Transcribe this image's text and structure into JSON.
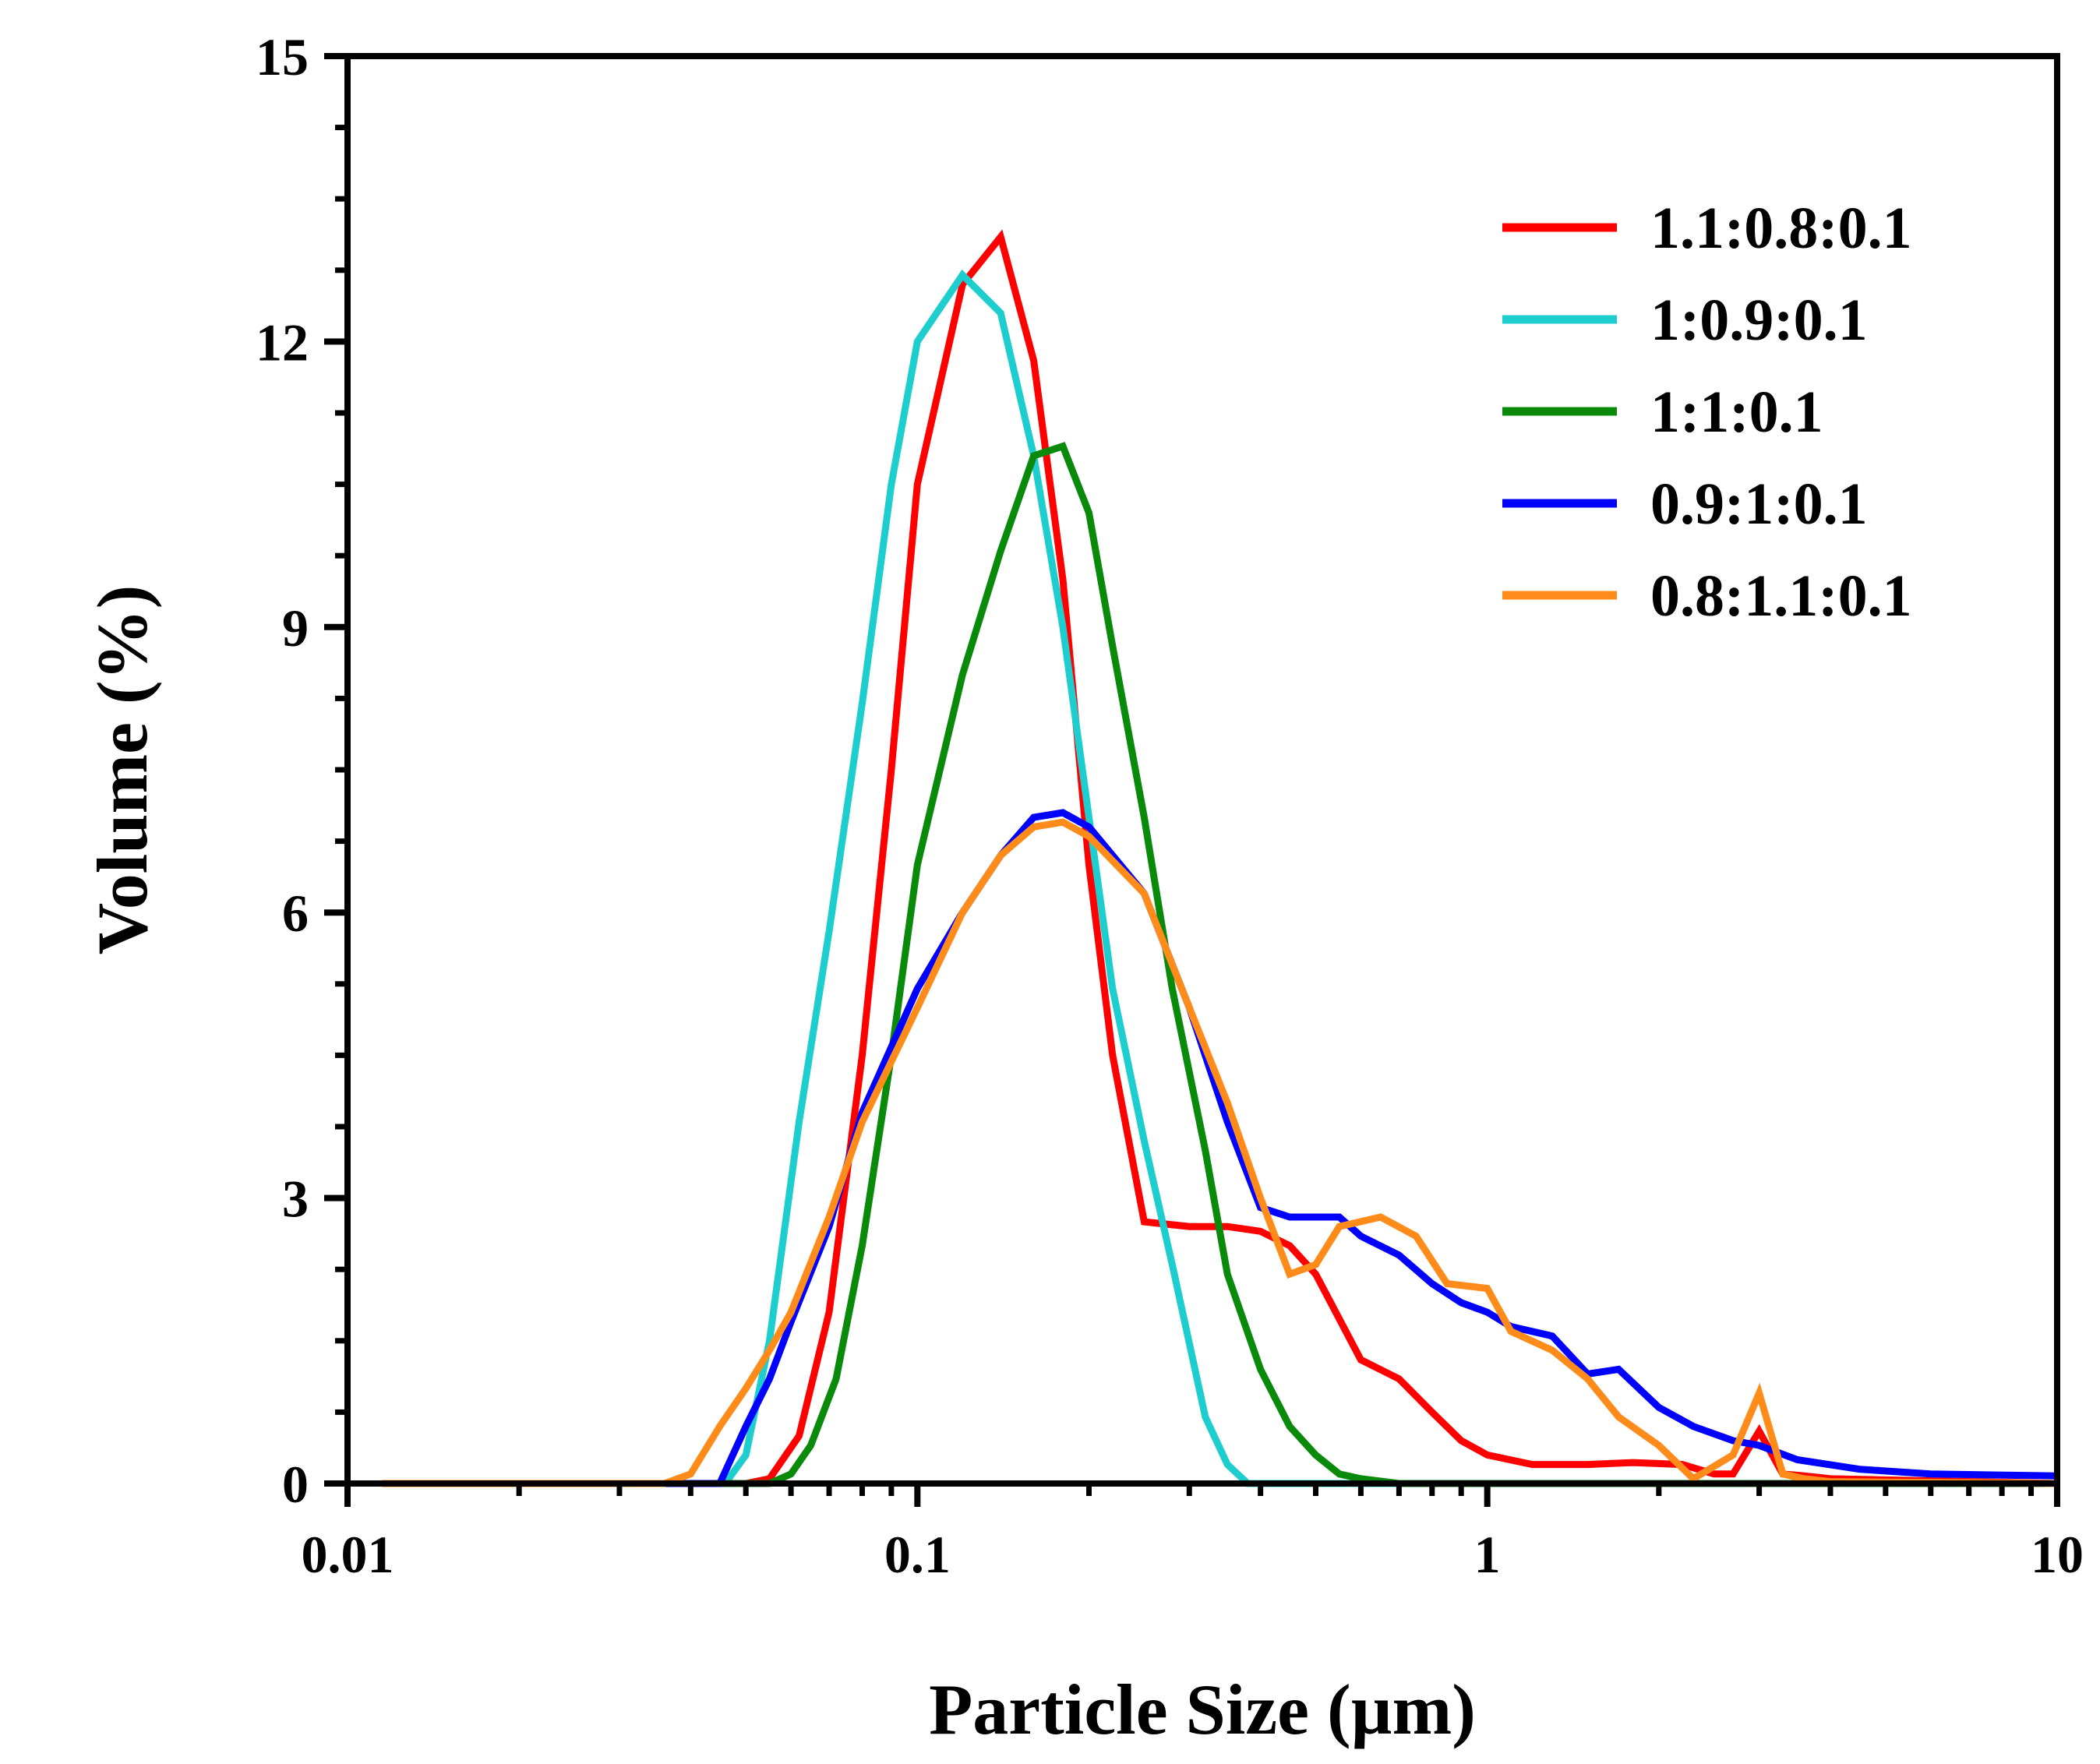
{
  "chart_data": {
    "type": "line",
    "title": "",
    "xlabel": "Particle Size (µm)",
    "ylabel": "Volume (%)",
    "xscale": "log",
    "xlim": [
      0.01,
      10
    ],
    "ylim": [
      0,
      15
    ],
    "xticks": [
      {
        "value": 0.01,
        "label": "0.01"
      },
      {
        "value": 0.1,
        "label": "0.1"
      },
      {
        "value": 1,
        "label": "1"
      },
      {
        "value": 10,
        "label": "10"
      }
    ],
    "yticks": [
      {
        "value": 0,
        "label": "0"
      },
      {
        "value": 3,
        "label": "3"
      },
      {
        "value": 6,
        "label": "6"
      },
      {
        "value": 9,
        "label": "9"
      },
      {
        "value": 12,
        "label": "12"
      },
      {
        "value": 15,
        "label": "15"
      }
    ],
    "grid": false,
    "legend_position": "top-right",
    "series": [
      {
        "name": "1.1:0.8:0.1",
        "color": "#ff0000",
        "x": [
          0.0115,
          0.05,
          0.055,
          0.062,
          0.07,
          0.08,
          0.09,
          0.1,
          0.12,
          0.14,
          0.16,
          0.18,
          0.2,
          0.22,
          0.25,
          0.3,
          0.35,
          0.4,
          0.45,
          0.5,
          0.6,
          0.7,
          0.8,
          0.9,
          1.0,
          1.2,
          1.5,
          1.8,
          2.2,
          2.5,
          2.7,
          3.0,
          3.3,
          3.6,
          4.0,
          10
        ],
        "y": [
          0,
          0,
          0.05,
          0.5,
          1.8,
          4.5,
          7.5,
          10.5,
          12.6,
          13.1,
          11.8,
          9.5,
          6.5,
          4.5,
          2.75,
          2.7,
          2.7,
          2.65,
          2.5,
          2.2,
          1.3,
          1.1,
          0.75,
          0.45,
          0.3,
          0.2,
          0.2,
          0.22,
          0.2,
          0.1,
          0.1,
          0.55,
          0.1,
          0.08,
          0.05,
          0
        ]
      },
      {
        "name": "1:0.9:0.1",
        "color": "#1ecece",
        "x": [
          0.0115,
          0.046,
          0.05,
          0.055,
          0.062,
          0.07,
          0.08,
          0.09,
          0.1,
          0.12,
          0.14,
          0.16,
          0.18,
          0.2,
          0.22,
          0.25,
          0.28,
          0.32,
          0.35,
          0.38,
          10
        ],
        "y": [
          0,
          0,
          0.3,
          1.5,
          3.8,
          5.8,
          8.2,
          10.5,
          12.0,
          12.7,
          12.3,
          10.8,
          9.0,
          7.0,
          5.2,
          3.6,
          2.3,
          0.7,
          0.2,
          0,
          0
        ]
      },
      {
        "name": "1:1:0.1",
        "color": "#0a8a0a",
        "x": [
          0.0115,
          0.055,
          0.06,
          0.065,
          0.072,
          0.08,
          0.09,
          0.1,
          0.12,
          0.14,
          0.16,
          0.18,
          0.2,
          0.22,
          0.25,
          0.28,
          0.32,
          0.35,
          0.4,
          0.45,
          0.5,
          0.55,
          0.6,
          0.7,
          10
        ],
        "y": [
          0,
          0,
          0.1,
          0.4,
          1.1,
          2.5,
          4.5,
          6.5,
          8.5,
          9.8,
          10.8,
          10.9,
          10.2,
          8.8,
          7.0,
          5.2,
          3.5,
          2.2,
          1.2,
          0.6,
          0.3,
          0.1,
          0.05,
          0,
          0
        ]
      },
      {
        "name": "0.9:1:0.1",
        "color": "#0000ff",
        "x": [
          0.0115,
          0.045,
          0.05,
          0.055,
          0.06,
          0.07,
          0.08,
          0.1,
          0.12,
          0.14,
          0.16,
          0.18,
          0.2,
          0.25,
          0.3,
          0.35,
          0.4,
          0.45,
          0.5,
          0.55,
          0.6,
          0.7,
          0.8,
          0.9,
          1.0,
          1.1,
          1.3,
          1.5,
          1.7,
          2.0,
          2.3,
          2.7,
          3.0,
          3.5,
          4.5,
          6.0,
          10
        ],
        "y": [
          0,
          0,
          0.6,
          1.1,
          1.7,
          2.7,
          3.9,
          5.2,
          6.0,
          6.6,
          7.0,
          7.05,
          6.9,
          6.2,
          5.0,
          3.8,
          2.9,
          2.8,
          2.8,
          2.8,
          2.6,
          2.4,
          2.1,
          1.9,
          1.8,
          1.65,
          1.55,
          1.15,
          1.2,
          0.8,
          0.6,
          0.45,
          0.4,
          0.25,
          0.15,
          0.1,
          0.08
        ]
      },
      {
        "name": "0.8:1.1:0.1",
        "color": "#ff8c1a",
        "x": [
          0.0115,
          0.036,
          0.04,
          0.045,
          0.05,
          0.055,
          0.06,
          0.07,
          0.08,
          0.1,
          0.12,
          0.14,
          0.16,
          0.18,
          0.2,
          0.25,
          0.3,
          0.35,
          0.4,
          0.45,
          0.5,
          0.55,
          0.65,
          0.75,
          0.85,
          1.0,
          1.1,
          1.3,
          1.5,
          1.7,
          2.0,
          2.3,
          2.7,
          3.0,
          3.3,
          3.6,
          4.0,
          10
        ],
        "y": [
          0,
          0,
          0.1,
          0.6,
          1.0,
          1.4,
          1.8,
          2.8,
          3.8,
          5.0,
          6.0,
          6.6,
          6.9,
          6.95,
          6.8,
          6.2,
          5.0,
          4.0,
          3.0,
          2.2,
          2.3,
          2.7,
          2.8,
          2.6,
          2.1,
          2.05,
          1.6,
          1.4,
          1.1,
          0.7,
          0.4,
          0.05,
          0.3,
          0.95,
          0.1,
          0.05,
          0.02,
          0
        ]
      }
    ]
  }
}
